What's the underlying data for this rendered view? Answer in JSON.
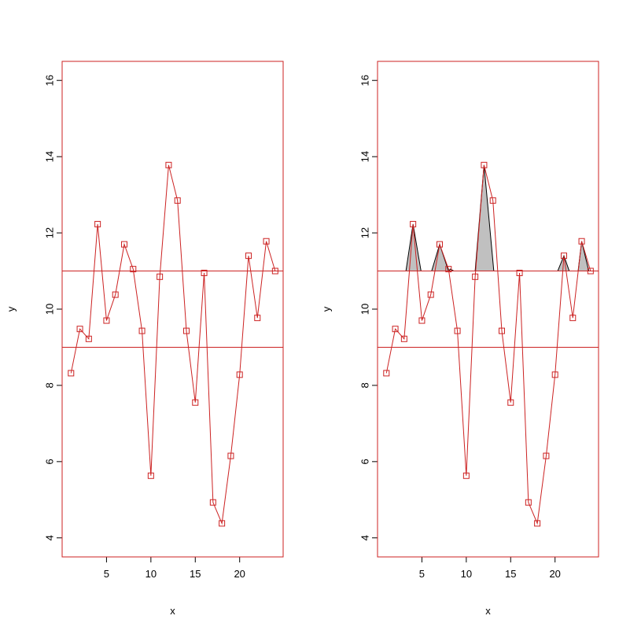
{
  "chart_data": [
    {
      "type": "line",
      "xlabel": "x",
      "ylabel": "y",
      "xlim": [
        0,
        24.9
      ],
      "ylim": [
        3.5,
        16.5
      ],
      "x_ticks": [
        "5",
        "10",
        "15",
        "20"
      ],
      "y_ticks": [
        "4",
        "6",
        "8",
        "10",
        "12",
        "14",
        "16"
      ],
      "frame_color": "#cc2222",
      "series": [
        {
          "x": [
            1,
            2,
            3,
            4,
            5,
            6,
            7,
            8,
            9,
            10,
            11,
            12,
            13,
            14,
            15,
            16,
            17,
            18,
            19,
            20,
            21,
            22,
            23,
            24
          ],
          "y": [
            8.32,
            9.48,
            9.22,
            12.23,
            9.7,
            10.38,
            11.7,
            11.05,
            9.43,
            5.63,
            10.85,
            13.78,
            12.85,
            9.43,
            7.55,
            10.95,
            4.93,
            4.38,
            6.15,
            8.28,
            11.4,
            9.77,
            11.78,
            11.0
          ],
          "color": "#cc2222",
          "marker": "square"
        }
      ],
      "hlines": [
        11,
        9
      ],
      "hline_color": "#cc2222"
    },
    {
      "type": "area",
      "xlabel": "x",
      "ylabel": "y",
      "xlim": [
        0,
        24.9
      ],
      "ylim": [
        3.5,
        16.5
      ],
      "x_ticks": [
        "5",
        "10",
        "15",
        "20"
      ],
      "y_ticks": [
        "4",
        "6",
        "8",
        "10",
        "12",
        "14",
        "16"
      ],
      "frame_color": "#cc2222",
      "series": [
        {
          "x": [
            1,
            2,
            3,
            4,
            5,
            6,
            7,
            8,
            9,
            10,
            11,
            12,
            13,
            14,
            15,
            16,
            17,
            18,
            19,
            20,
            21,
            22,
            23,
            24
          ],
          "y": [
            8.32,
            9.48,
            9.22,
            12.23,
            9.7,
            10.38,
            11.7,
            11.05,
            9.43,
            5.63,
            10.85,
            13.78,
            12.85,
            9.43,
            7.55,
            10.95,
            4.93,
            4.38,
            6.15,
            8.28,
            11.4,
            9.77,
            11.78,
            11.0
          ],
          "color": "#cc2222",
          "marker": "square"
        }
      ],
      "hlines": [
        11,
        9
      ],
      "hline_color": "#cc2222",
      "fill_threshold": 11,
      "fill_color": "#c0c0c0",
      "fill_outline_color": "#000000",
      "peaks": [
        {
          "x": [
            3.2,
            4,
            4.9
          ],
          "y": [
            11,
            12.23,
            11
          ]
        },
        {
          "x": [
            6.1,
            7,
            8.0
          ],
          "y": [
            11,
            11.7,
            11
          ]
        },
        {
          "x": [
            8.0,
            8.2,
            8.6
          ],
          "y": [
            11,
            11.05,
            11
          ]
        },
        {
          "x": [
            11.0,
            12,
            13.1
          ],
          "y": [
            11,
            13.78,
            11
          ]
        },
        {
          "x": [
            20.3,
            21,
            21.6
          ],
          "y": [
            11,
            11.4,
            11
          ]
        },
        {
          "x": [
            22.6,
            23,
            23.8
          ],
          "y": [
            11,
            11.78,
            11
          ]
        }
      ]
    }
  ]
}
